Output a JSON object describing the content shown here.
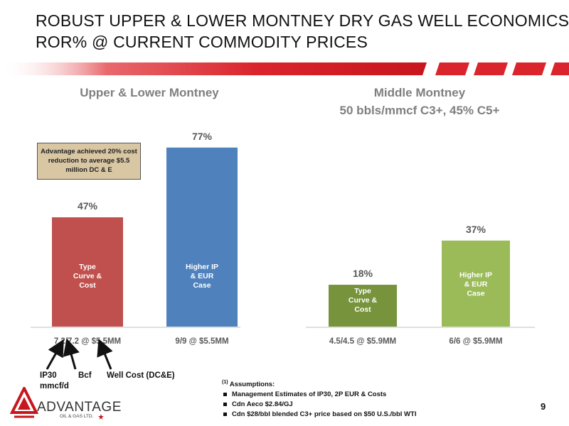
{
  "slide": {
    "title_line1": "ROBUST UPPER & LOWER MONTNEY DRY GAS WELL ECONOMICS",
    "title_line2": "ROR% @ CURRENT COMMODITY PRICES",
    "page_number": "9",
    "colors": {
      "stripe": "#d9252b",
      "bar_red": "#c0504d",
      "bar_blue": "#4f81bd",
      "bar_darkgreen": "#77933c",
      "bar_lightgreen": "#9bbb59",
      "callout_fill": "#d9c7a4"
    }
  },
  "chart_data": [
    {
      "type": "bar",
      "title": "Upper & Lower Montney",
      "categories": [
        "7.2/7.2 @ $5.5MM",
        "9/9 @ $5.5MM"
      ],
      "values": [
        47,
        77
      ],
      "data_labels": [
        "47%",
        "77%"
      ],
      "bar_labels": [
        "Type\nCurve &\nCost",
        "Higher IP\n& EUR\nCase"
      ],
      "colors": [
        "#c0504d",
        "#4f81bd"
      ],
      "ylim": [
        0,
        80
      ],
      "grid": false,
      "annotation": "Advantage achieved 20% cost reduction to average $5.5 million DC & E"
    },
    {
      "type": "bar",
      "title_line1": "Middle Montney",
      "title_line2": "50 bbls/mmcf C3+, 45% C5+",
      "categories": [
        "4.5/4.5 @ $5.9MM",
        "6/6 @ $5.9MM"
      ],
      "values": [
        18,
        37
      ],
      "data_labels": [
        "18%",
        "37%"
      ],
      "bar_labels": [
        "Type\nCurve &\nCost",
        "Higher IP\n& EUR\nCase"
      ],
      "colors": [
        "#77933c",
        "#9bbb59"
      ],
      "ylim": [
        0,
        80
      ],
      "grid": false
    }
  ],
  "legend": {
    "ip30": "IP30",
    "ip30_unit": "mmcf/d",
    "bcf": "Bcf",
    "well_cost": "Well Cost (DC&E)"
  },
  "logo": {
    "word": "ADVANTAGE",
    "sub": "OIL & GAS LTD."
  },
  "assumptions": {
    "marker": "(1)",
    "heading": "Assumptions:",
    "items": [
      "Management Estimates of IP30, 2P EUR & Costs",
      "Cdn Aeco $2.84/GJ",
      "Cdn $28/bbl blended C3+ price based on $50 U.S./bbl WTI"
    ]
  }
}
